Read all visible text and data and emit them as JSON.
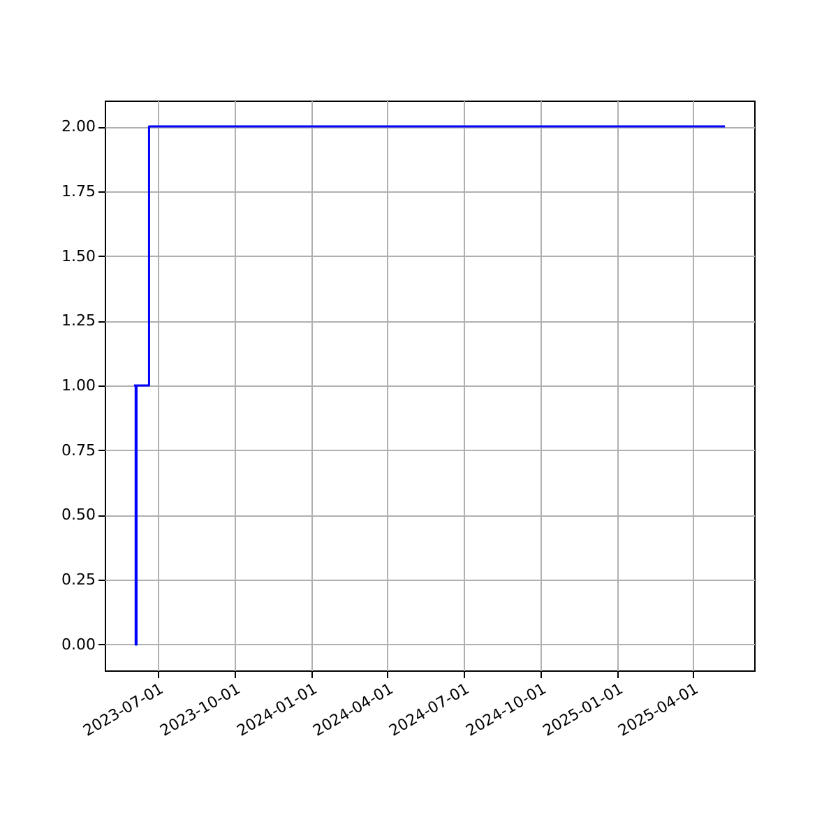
{
  "chart_data": {
    "type": "step",
    "series": [
      {
        "color": "#0000ff",
        "x": [
          "2023-06-03",
          "2023-06-05",
          "2023-06-06",
          "2023-06-21",
          "2025-05-10"
        ],
        "values": [
          1,
          0,
          1,
          2,
          2
        ]
      }
    ],
    "xlim": [
      "2023-04-29",
      "2025-06-14"
    ],
    "xticks": [
      "2023-07-01",
      "2023-10-01",
      "2024-01-01",
      "2024-04-01",
      "2024-07-01",
      "2024-10-01",
      "2025-01-01",
      "2025-04-01"
    ],
    "ylim": [
      -0.1,
      2.1
    ],
    "yticks": [
      {
        "value": 0,
        "label": "0.00"
      },
      {
        "value": 0.25,
        "label": "0.25"
      },
      {
        "value": 0.5,
        "label": "0.50"
      },
      {
        "value": 0.75,
        "label": "0.75"
      },
      {
        "value": 1,
        "label": "1.00"
      },
      {
        "value": 1.25,
        "label": "1.25"
      },
      {
        "value": 1.5,
        "label": "1.50"
      },
      {
        "value": 1.75,
        "label": "1.75"
      },
      {
        "value": 2,
        "label": "2.00"
      }
    ],
    "grid": true,
    "marker": "none",
    "line_style": "solid"
  }
}
